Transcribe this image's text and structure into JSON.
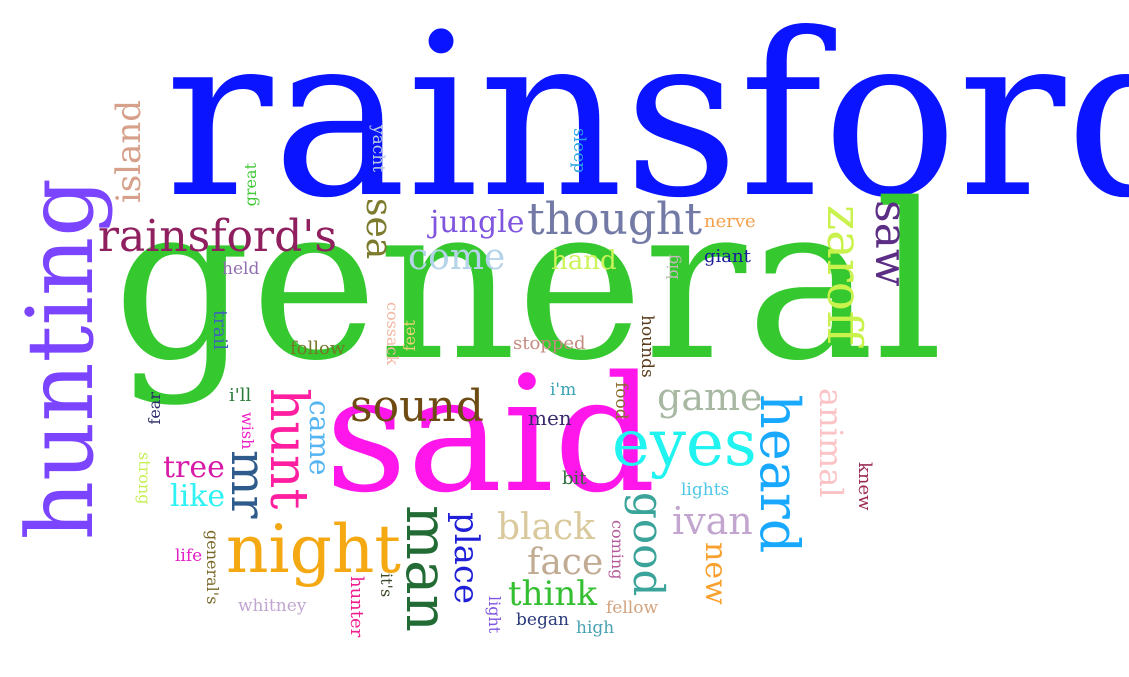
{
  "words": [
    {
      "text": "rainsford",
      "color": "#0a14ff"
    },
    {
      "text": "general",
      "color": "#35c92f"
    },
    {
      "text": "said",
      "color": "#ff16ea"
    },
    {
      "text": "hunting",
      "color": "#7b44ff"
    },
    {
      "text": "rainsford's",
      "color": "#8f1f5e"
    },
    {
      "text": "island",
      "color": "#d6a08a"
    },
    {
      "text": "night",
      "color": "#f4a812"
    },
    {
      "text": "eyes",
      "color": "#20f3f0"
    },
    {
      "text": "heard",
      "color": "#18a9ff"
    },
    {
      "text": "thought",
      "color": "#737aa6"
    },
    {
      "text": "zaroff",
      "color": "#c9f24c"
    },
    {
      "text": "saw",
      "color": "#5b2d85"
    },
    {
      "text": "man",
      "color": "#226b35"
    },
    {
      "text": "hunt",
      "color": "#ff1ea0"
    },
    {
      "text": "sound",
      "color": "#6d4b12"
    },
    {
      "text": "mr",
      "color": "#2e5b8c"
    },
    {
      "text": "sea",
      "color": "#7b7a2d"
    },
    {
      "text": "come",
      "color": "#b6d4e9"
    },
    {
      "text": "jungle",
      "color": "#7f55df"
    },
    {
      "text": "game",
      "color": "#a9b8a3"
    },
    {
      "text": "good",
      "color": "#3aa39a"
    },
    {
      "text": "animal",
      "color": "#fcc3c6"
    },
    {
      "text": "black",
      "color": "#dac99c"
    },
    {
      "text": "ivan",
      "color": "#c2a6cf"
    },
    {
      "text": "place",
      "color": "#1f1fd7"
    },
    {
      "text": "face",
      "color": "#c1ab93"
    },
    {
      "text": "think",
      "color": "#34bf31"
    },
    {
      "text": "tree",
      "color": "#d71aa7"
    },
    {
      "text": "new",
      "color": "#f9a12e"
    },
    {
      "text": "hand",
      "color": "#cbf35a"
    },
    {
      "text": "like",
      "color": "#2ef2f3"
    },
    {
      "text": "came",
      "color": "#55b4f2"
    },
    {
      "text": "yacht",
      "color": "#b9cbe0"
    },
    {
      "text": "sleep",
      "color": "#2aa3e4"
    },
    {
      "text": "great",
      "color": "#3ec935"
    },
    {
      "text": "nerve",
      "color": "#f6a14c"
    },
    {
      "text": "giant",
      "color": "#1a1a98"
    },
    {
      "text": "big",
      "color": "#c3b9b9"
    },
    {
      "text": "held",
      "color": "#8f6fb0"
    },
    {
      "text": "trail",
      "color": "#3c68b5"
    },
    {
      "text": "feet",
      "color": "#f1d27c"
    },
    {
      "text": "cossack",
      "color": "#f2b7a5"
    },
    {
      "text": "follow",
      "color": "#76762a"
    },
    {
      "text": "hounds",
      "color": "#5a3a1a"
    },
    {
      "text": "stopped",
      "color": "#c58a7f"
    },
    {
      "text": "i'll",
      "color": "#2c7b3a"
    },
    {
      "text": "fear",
      "color": "#2a2a6b"
    },
    {
      "text": "wish",
      "color": "#ee1fc6"
    },
    {
      "text": "i'm",
      "color": "#3aa3b3"
    },
    {
      "text": "food",
      "color": "#8a6a30"
    },
    {
      "text": "men",
      "color": "#3b2b6e"
    },
    {
      "text": "strong",
      "color": "#c7ef5a"
    },
    {
      "text": "knew",
      "color": "#9b2d55"
    },
    {
      "text": "bit",
      "color": "#2c6b3a"
    },
    {
      "text": "lights",
      "color": "#4dc7e6"
    },
    {
      "text": "coming",
      "color": "#b55c9a"
    },
    {
      "text": "life",
      "color": "#e61fc6"
    },
    {
      "text": "general's",
      "color": "#7a6a2a"
    },
    {
      "text": "it's",
      "color": "#3a4a2a"
    },
    {
      "text": "hunter",
      "color": "#f01f8f"
    },
    {
      "text": "whitney",
      "color": "#c0a6cf"
    },
    {
      "text": "light",
      "color": "#7f55df"
    },
    {
      "text": "began",
      "color": "#2b3a7a"
    },
    {
      "text": "high",
      "color": "#4aa3b3"
    },
    {
      "text": "fellow",
      "color": "#d2a37f"
    }
  ]
}
